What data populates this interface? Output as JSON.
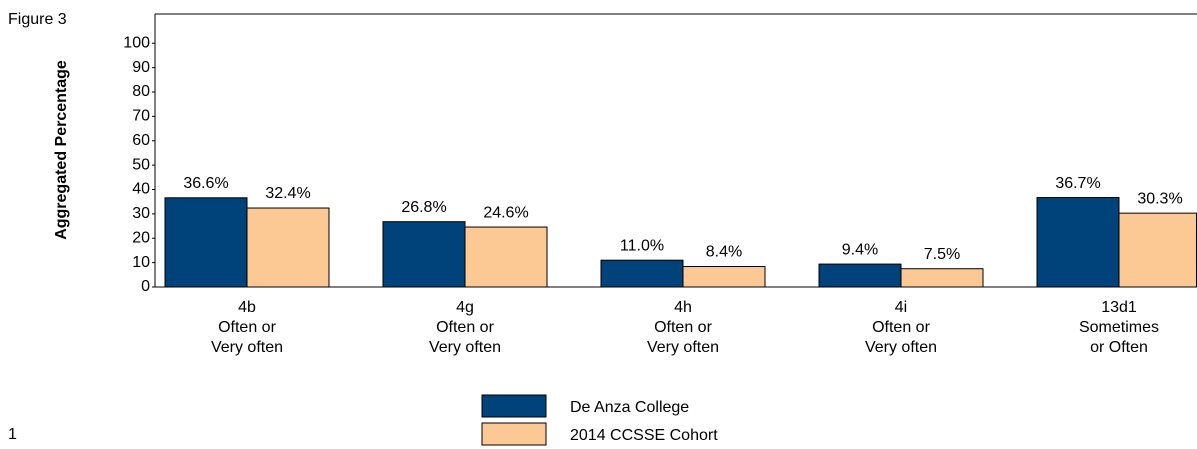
{
  "figure_label": "Figure 3",
  "page_number": "1",
  "chart_data": {
    "type": "bar",
    "y_axis_label": "Aggregated Percentage",
    "categories": [
      [
        "4b",
        "Often or",
        "Very often"
      ],
      [
        "4g",
        "Often or",
        "Very often"
      ],
      [
        "4h",
        "Often or",
        "Very often"
      ],
      [
        "4i",
        "Often or",
        "Very often"
      ],
      [
        "13d1",
        "Sometimes",
        "or Often"
      ]
    ],
    "series": [
      {
        "name": "De Anza College",
        "color": "#00427a",
        "values": [
          36.6,
          26.8,
          11.0,
          9.4,
          36.7
        ],
        "value_labels": [
          "36.6%",
          "26.8%",
          "11.0%",
          "9.4%",
          "36.7%"
        ]
      },
      {
        "name": "2014 CCSSE Cohort",
        "color": "#fcc995",
        "values": [
          32.4,
          24.6,
          8.4,
          7.5,
          30.3
        ],
        "value_labels": [
          "32.4%",
          "24.6%",
          "8.4%",
          "7.5%",
          "30.3%"
        ]
      }
    ],
    "ylim": [
      0,
      112
    ],
    "yticks": [
      0,
      10,
      20,
      30,
      40,
      50,
      60,
      70,
      80,
      90,
      100
    ]
  }
}
